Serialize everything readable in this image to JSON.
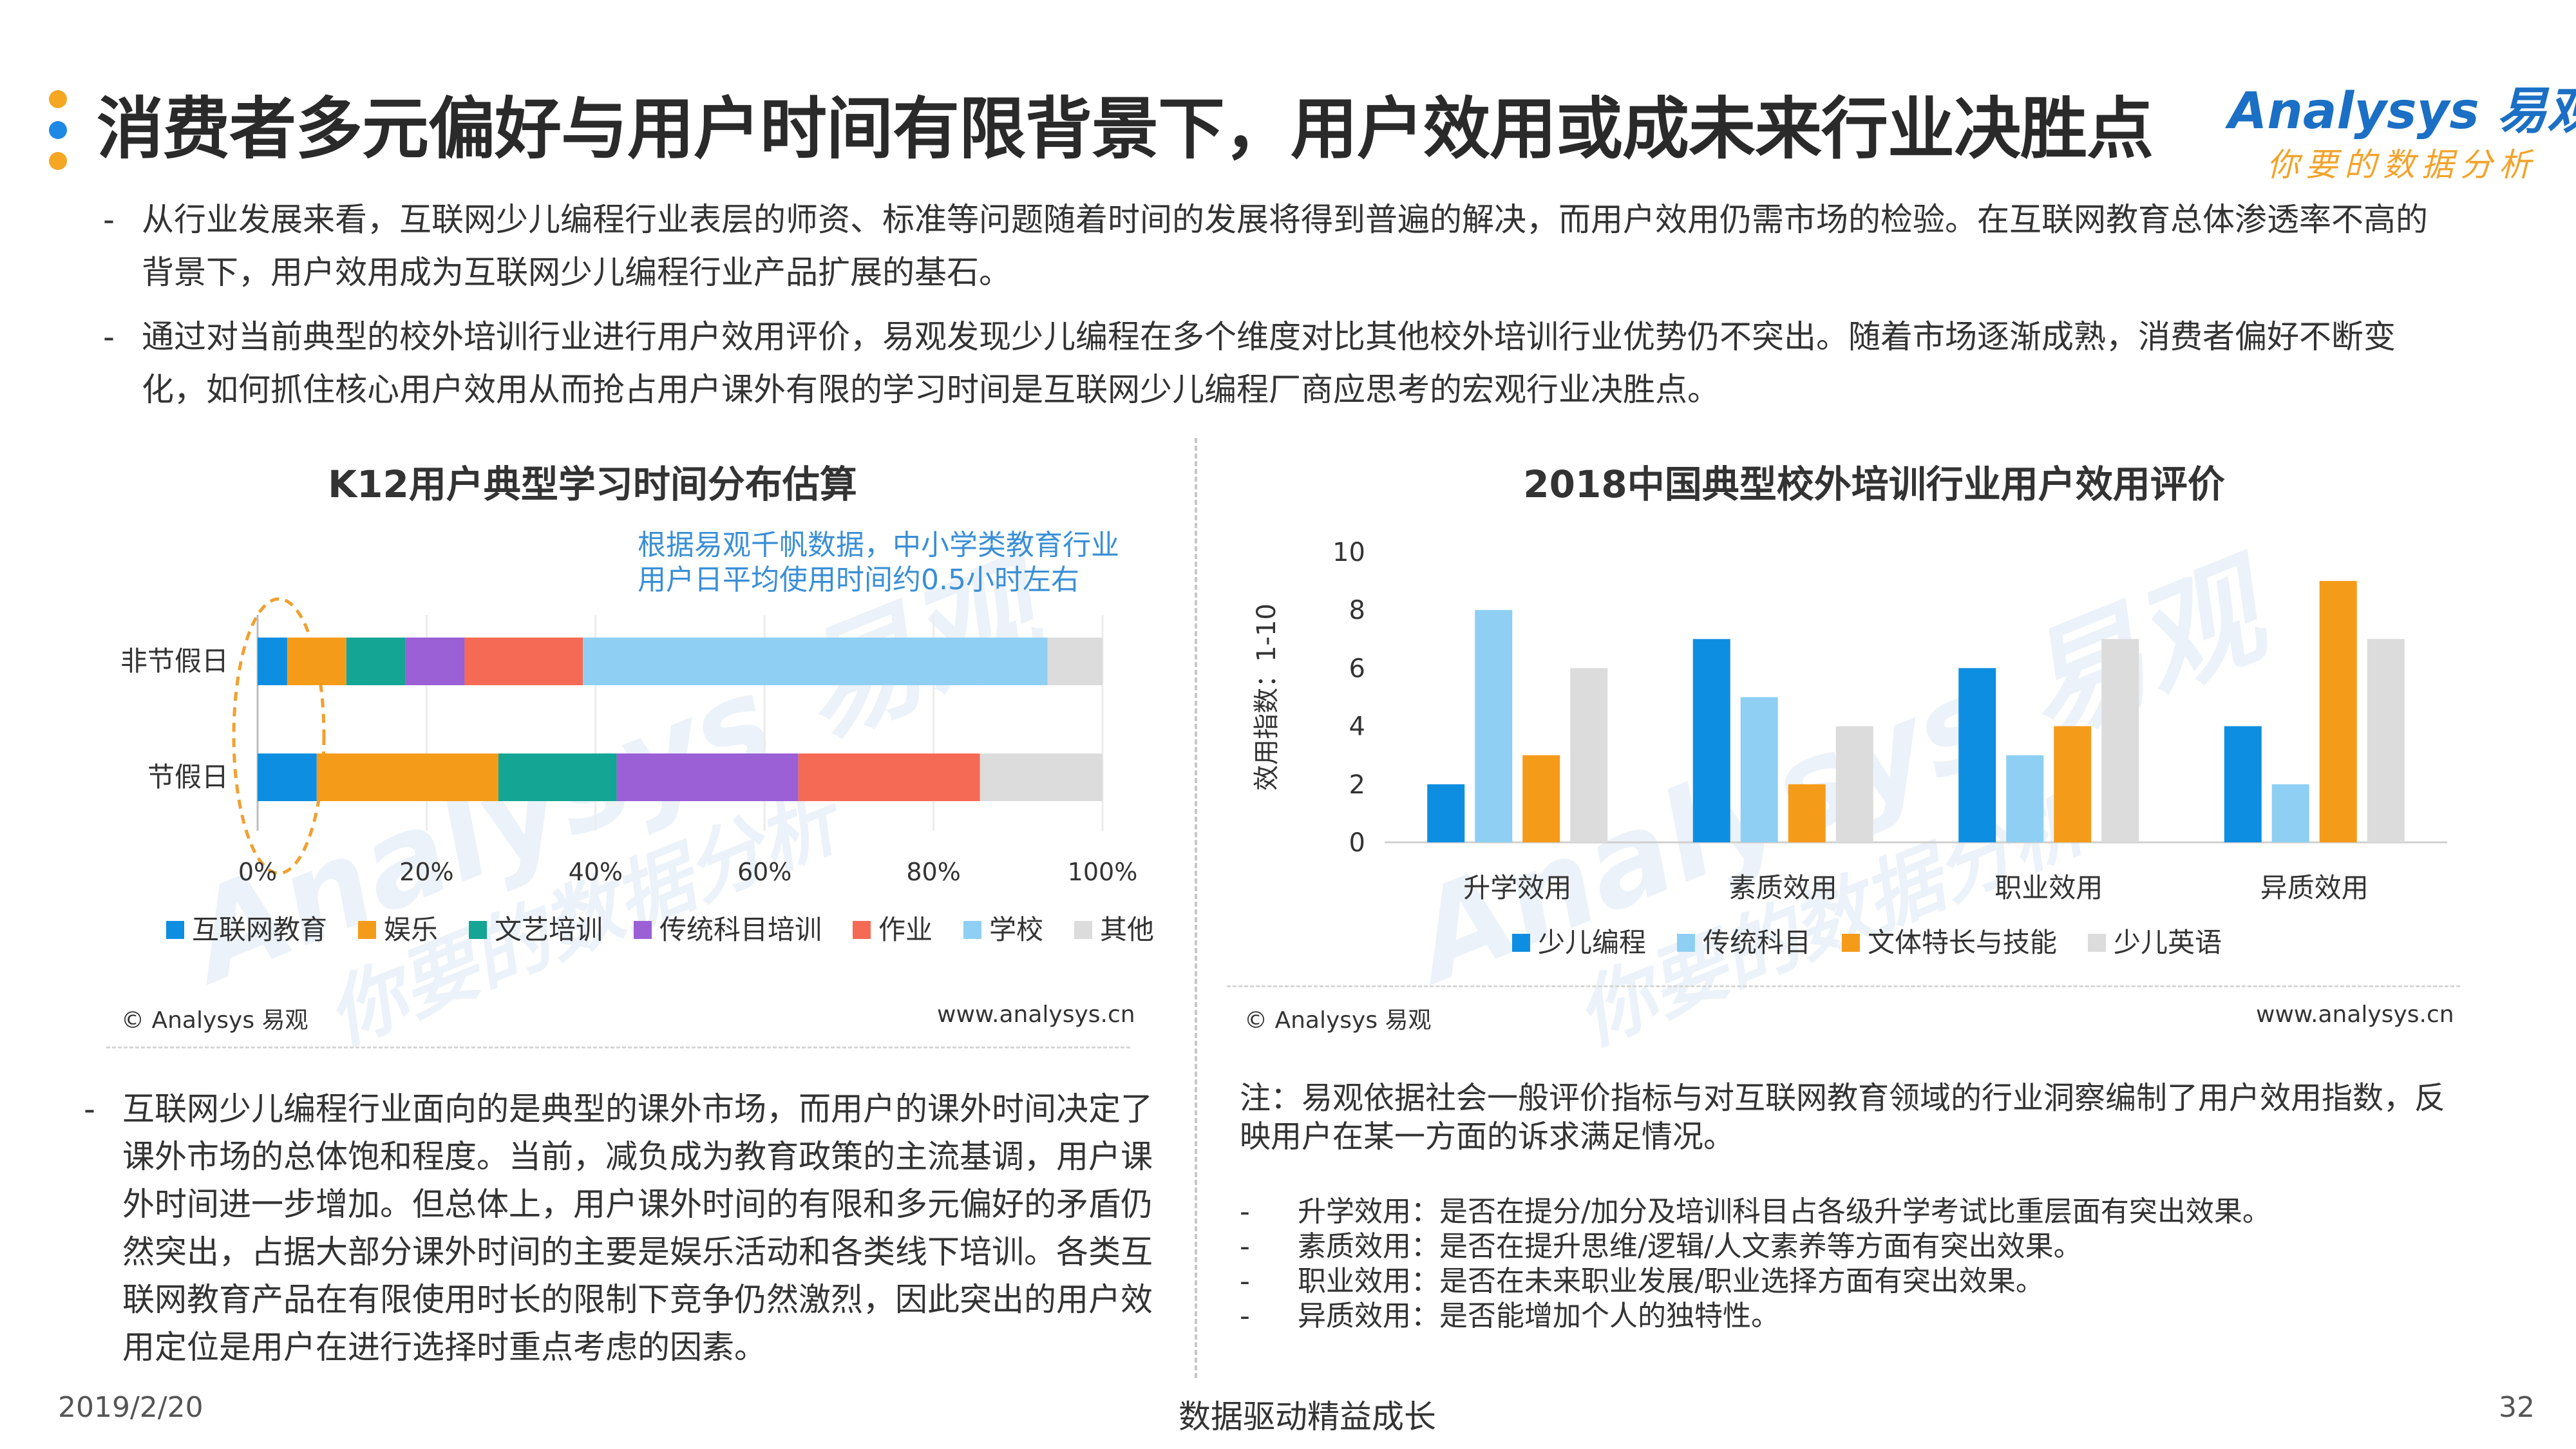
{
  "header": {
    "title": "消费者多元偏好与用户时间有限背景下，用户效用或成未来行业决胜点",
    "dot_colors": [
      "#f5a623",
      "#1e88e5",
      "#f5a623"
    ]
  },
  "logo": {
    "main": "Analysys 易观",
    "sub": "你要的数据分析"
  },
  "intro": {
    "dash": "-",
    "bullets": [
      "从行业发展来看，互联网少儿编程行业表层的师资、标准等问题随着时间的发展将得到普遍的解决，而用户效用仍需市场的检验。在互联网教育总体渗透率不高的背景下，用户效用成为互联网少儿编程行业产品扩展的基石。",
      "通过对当前典型的校外培训行业进行用户效用评价，易观发现少儿编程在多个维度对比其他校外培训行业优势仍不突出。随着市场逐渐成熟，消费者偏好不断变化，如何抓住核心用户效用从而抢占用户课外有限的学习时间是互联网少儿编程厂商应思考的宏观行业决胜点。"
    ]
  },
  "left_panel": {
    "source": "© Analysys 易观",
    "url": "www.analysys.cn",
    "annotation": "根据易观千帆数据，中小学类教育行业用户日平均使用时间约0.5小时左右",
    "paragraph": "互联网少儿编程行业面向的是典型的课外市场，而用户的课外时间决定了课外市场的总体饱和程度。当前，减负成为教育政策的主流基调，用户课外时间进一步增加。但总体上，用户课外时间的有限和多元偏好的矛盾仍然突出，占据大部分课外时间的主要是娱乐活动和各类线下培训。各类互联网教育产品在有限使用时长的限制下竞争仍然激烈，因此突出的用户效用定位是用户在进行选择时重点考虑的因素。",
    "dash": "-"
  },
  "right_panel": {
    "source": "© Analysys 易观",
    "url": "www.analysys.cn",
    "note": "注：易观依据社会一般评价指标与对互联网教育领域的行业洞察编制了用户效用指数，反映用户在某一方面的诉求满足情况。",
    "definitions": [
      "升学效用：是否在提分/加分及培训科目占各级升学考试比重层面有突出效果。",
      "素质效用：是否在提升思维/逻辑/人文素养等方面有突出效果。",
      "职业效用：是否在未来职业发展/职业选择方面有突出效果。",
      "异质效用：是否能增加个人的独特性。"
    ],
    "dash": "-"
  },
  "footer": {
    "date": "2019/2/20",
    "slogan": "数据驱动精益成长",
    "page": "32"
  },
  "watermark": {
    "main": "Analysys 易观",
    "sub": "你要的数据分析"
  },
  "chart_data": [
    {
      "type": "bar",
      "orientation": "horizontal",
      "stacked": true,
      "title": "K12用户典型学习时间分布估算",
      "categories": [
        "非节假日",
        "节假日"
      ],
      "x_ticks": [
        "0%",
        "20%",
        "40%",
        "60%",
        "80%",
        "100%"
      ],
      "xlim": [
        0,
        100
      ],
      "legend_position": "bottom",
      "series": [
        {
          "name": "互联网教育",
          "color": "#0e8ee0",
          "values": [
            3.5,
            7
          ]
        },
        {
          "name": "娱乐",
          "color": "#f59b1a",
          "values": [
            7,
            21.5
          ]
        },
        {
          "name": "文艺培训",
          "color": "#14a594",
          "values": [
            7,
            14
          ]
        },
        {
          "name": "传统科目培训",
          "color": "#9b5fd6",
          "values": [
            7,
            21.5
          ]
        },
        {
          "name": "作业",
          "color": "#f56a55",
          "values": [
            14,
            21.5
          ]
        },
        {
          "name": "学校",
          "color": "#8ecff3",
          "values": [
            55,
            0
          ]
        },
        {
          "name": "其他",
          "color": "#dcdcdc",
          "values": [
            6.5,
            14.5
          ]
        }
      ]
    },
    {
      "type": "bar",
      "title": "2018中国典型校外培训行业用户效用评价",
      "ylabel": "效用指数：1-10",
      "categories": [
        "升学效用",
        "素质效用",
        "职业效用",
        "异质效用"
      ],
      "ylim": [
        0,
        10
      ],
      "y_ticks": [
        "0",
        "2",
        "4",
        "6",
        "8",
        "10"
      ],
      "legend_position": "bottom",
      "series": [
        {
          "name": "少儿编程",
          "color": "#0e8ee0",
          "values": [
            2,
            7,
            6,
            4
          ]
        },
        {
          "name": "传统科目",
          "color": "#8ecff3",
          "values": [
            8,
            5,
            3,
            2
          ]
        },
        {
          "name": "文体特长与技能",
          "color": "#f59b1a",
          "values": [
            3,
            2,
            4,
            9
          ]
        },
        {
          "name": "少儿英语",
          "color": "#dcdcdc",
          "values": [
            6,
            4,
            7,
            7
          ]
        }
      ]
    }
  ]
}
